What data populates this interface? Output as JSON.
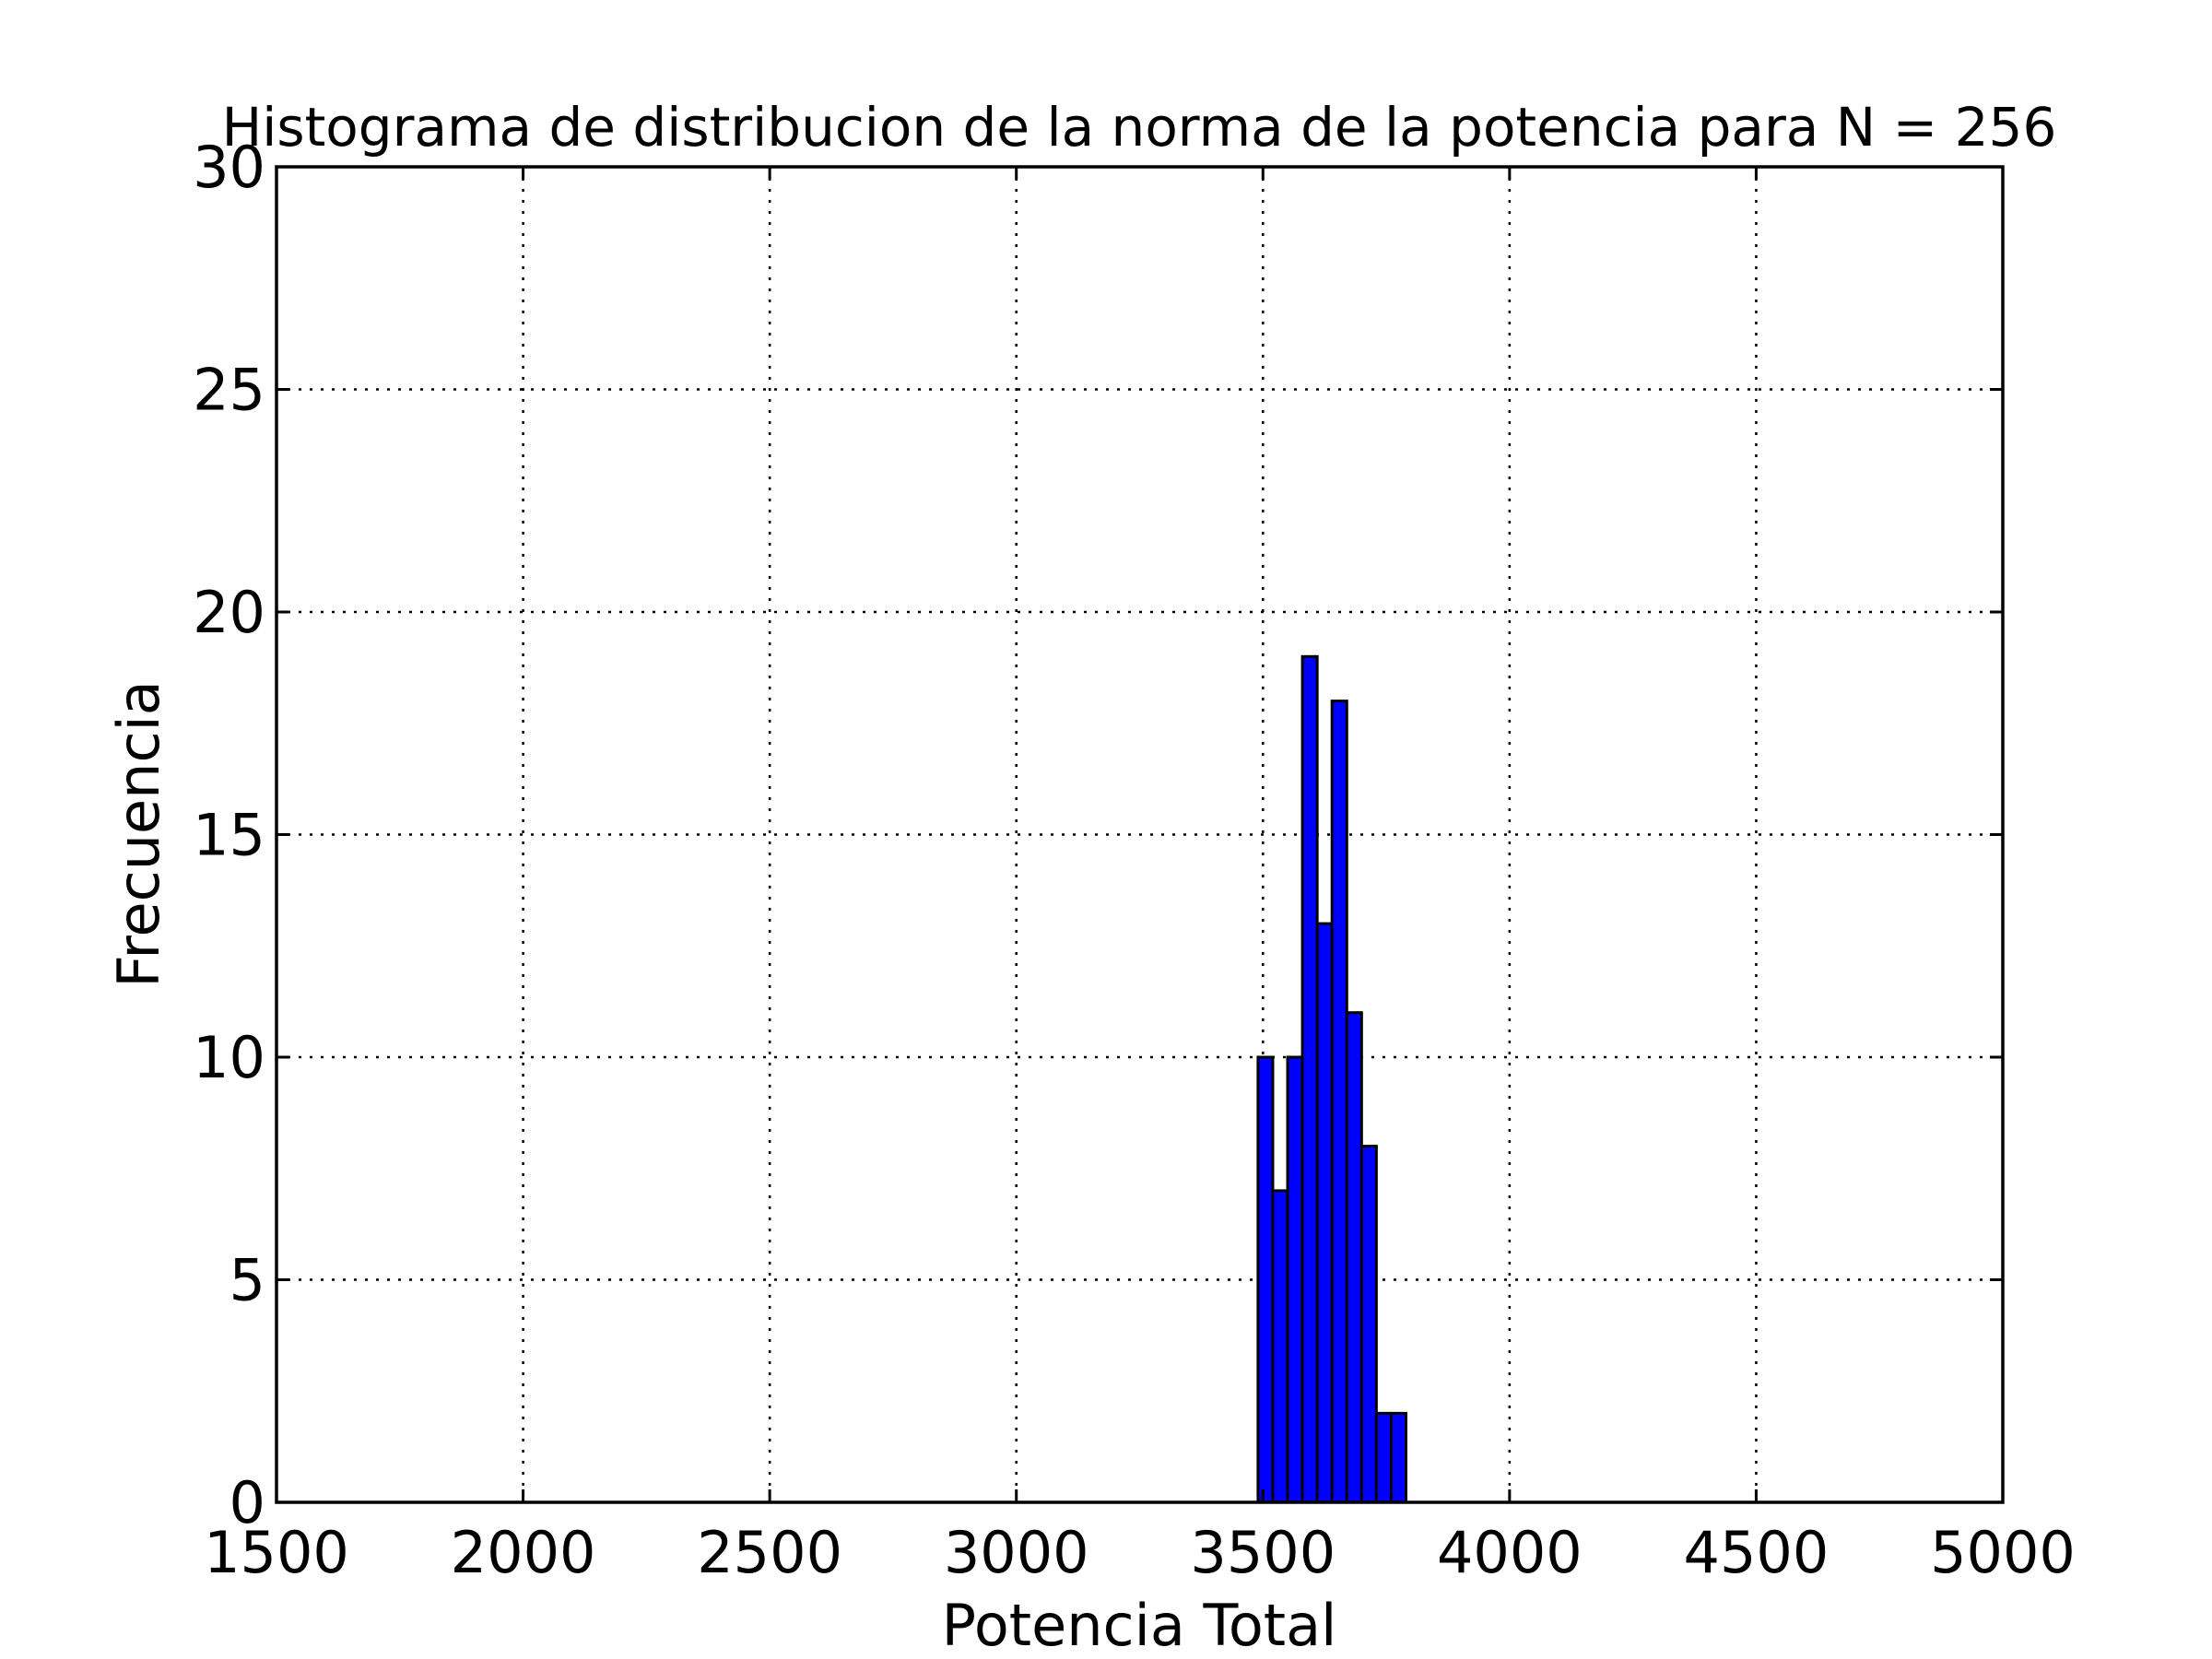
{
  "chart_data": {
    "type": "bar",
    "title": "Histograma de distribucion de la norma de la potencia para N = 256",
    "xlabel": "Potencia Total",
    "ylabel": "Frecuencia",
    "xlim": [
      1500,
      5000
    ],
    "ylim": [
      0,
      30
    ],
    "xticks": [
      "1500",
      "2000",
      "2500",
      "3000",
      "3500",
      "4000",
      "4500",
      "5000"
    ],
    "yticks": [
      "0",
      "5",
      "10",
      "15",
      "20",
      "25",
      "30"
    ],
    "grid": true,
    "bar_color": "#0000ff",
    "bins": [
      {
        "x0": 3490,
        "x1": 3520,
        "value": 10
      },
      {
        "x0": 3520,
        "x1": 3550,
        "value": 7
      },
      {
        "x0": 3550,
        "x1": 3580,
        "value": 10
      },
      {
        "x0": 3580,
        "x1": 3610,
        "value": 19
      },
      {
        "x0": 3610,
        "x1": 3640,
        "value": 13
      },
      {
        "x0": 3640,
        "x1": 3670,
        "value": 18
      },
      {
        "x0": 3670,
        "x1": 3700,
        "value": 11
      },
      {
        "x0": 3700,
        "x1": 3730,
        "value": 8
      },
      {
        "x0": 3730,
        "x1": 3760,
        "value": 2
      },
      {
        "x0": 3760,
        "x1": 3790,
        "value": 2
      }
    ]
  }
}
